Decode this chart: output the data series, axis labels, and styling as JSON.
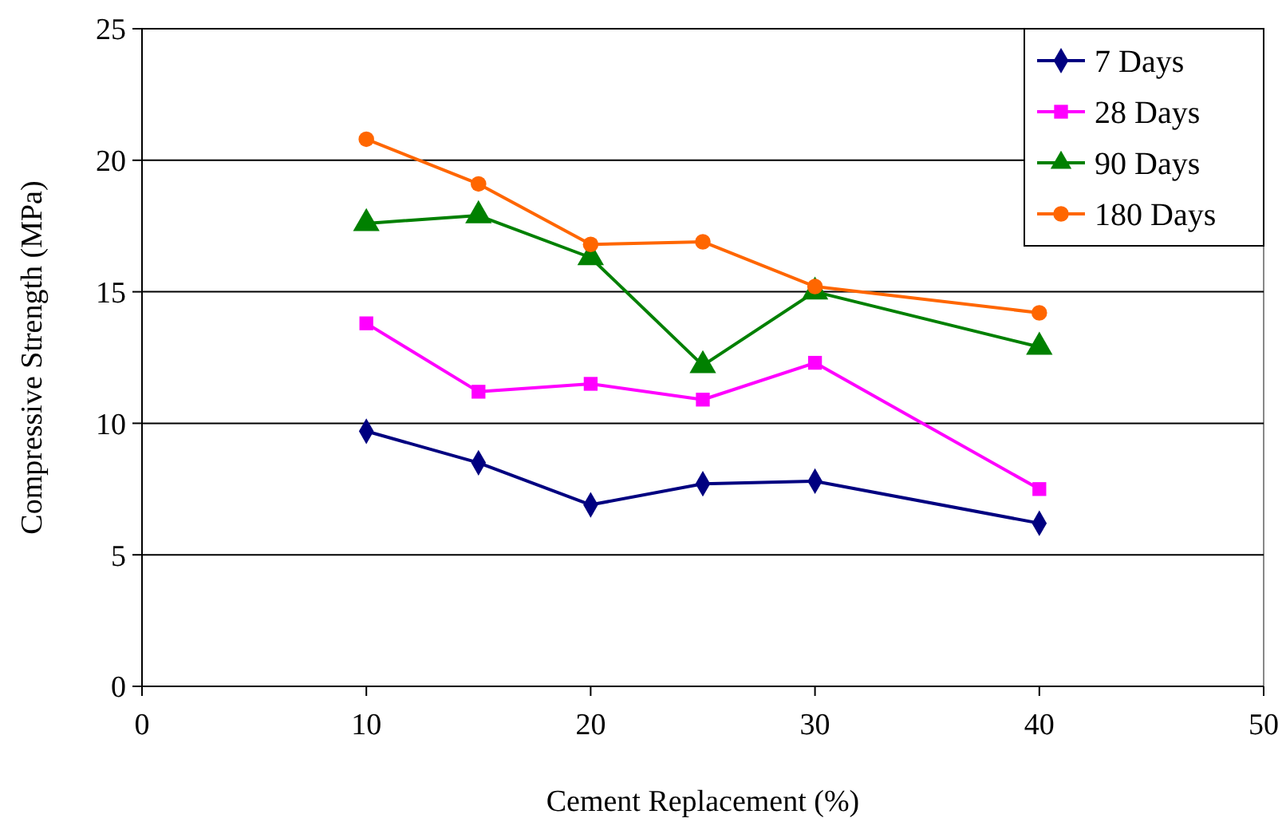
{
  "chart_data": {
    "type": "line",
    "xlabel": "Cement Replacement (%)",
    "ylabel": "Compressive Strength (MPa)",
    "x": [
      10,
      15,
      20,
      25,
      30,
      40
    ],
    "series": [
      {
        "name": "7 Days",
        "color": "#000080",
        "marker": "diamond",
        "values": [
          9.7,
          8.5,
          6.9,
          7.7,
          7.8,
          6.2
        ]
      },
      {
        "name": "28 Days",
        "color": "#ff00ff",
        "marker": "square",
        "values": [
          13.8,
          11.2,
          11.5,
          10.9,
          12.3,
          7.5
        ]
      },
      {
        "name": "90 Days",
        "color": "#008000",
        "marker": "triangle",
        "values": [
          17.6,
          17.9,
          16.3,
          12.2,
          15.0,
          12.9
        ]
      },
      {
        "name": "180 Days",
        "color": "#ff6600",
        "marker": "circle",
        "values": [
          20.8,
          19.1,
          16.8,
          16.9,
          15.2,
          14.2
        ]
      }
    ],
    "xlim": [
      0,
      50
    ],
    "xticks": [
      0,
      10,
      20,
      30,
      40,
      50
    ],
    "ylim": [
      0,
      25
    ],
    "yticks": [
      0,
      5,
      10,
      15,
      20,
      25
    ],
    "grid": "y",
    "legend": "top right"
  }
}
